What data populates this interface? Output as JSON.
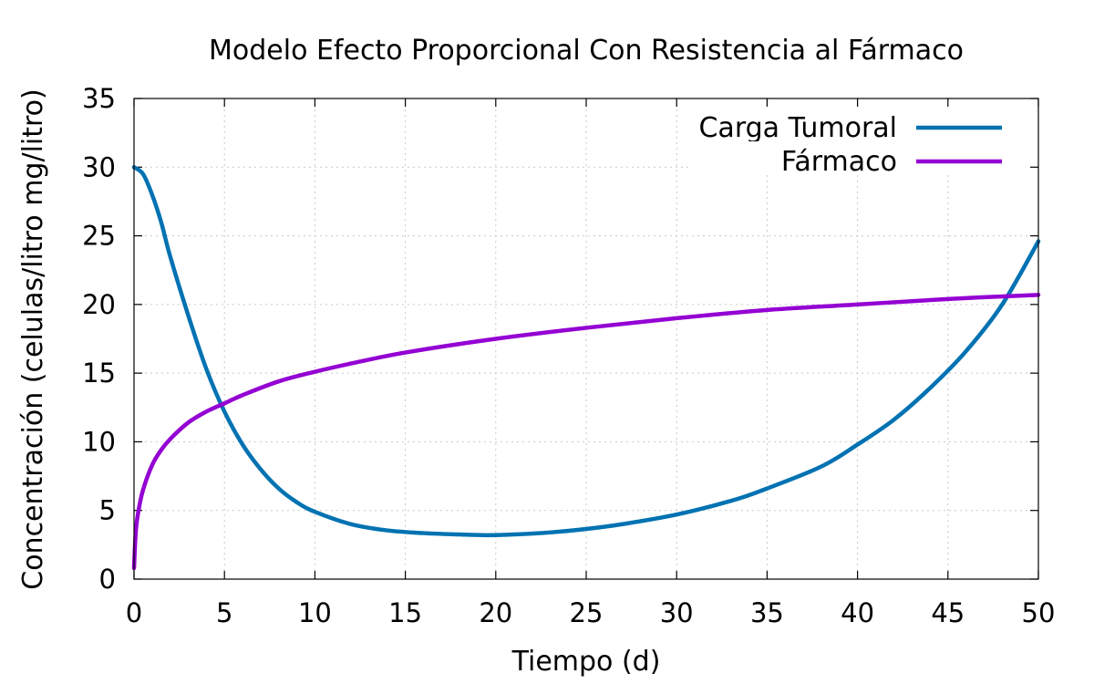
{
  "chart_data": {
    "type": "line",
    "title": "Modelo Efecto Proporcional Con Resistencia al Fármaco",
    "xlabel": "Tiempo (d)",
    "ylabel": "Concentración (celulas/litro  mg/litro)",
    "xlim": [
      0,
      50
    ],
    "ylim": [
      0,
      35
    ],
    "xticks": [
      0,
      5,
      10,
      15,
      20,
      25,
      30,
      35,
      40,
      45,
      50
    ],
    "yticks": [
      0,
      5,
      10,
      15,
      20,
      25,
      30,
      35
    ],
    "grid": true,
    "legend_position": "top-right",
    "series": [
      {
        "name": "Carga Tumoral",
        "color": "#0072b2",
        "x": [
          0,
          0.5,
          1,
          1.5,
          2,
          3,
          4,
          5,
          6,
          7,
          8,
          9,
          10,
          12,
          14,
          16,
          18,
          19.5,
          21,
          23,
          25,
          27,
          30,
          33,
          35,
          38,
          40,
          42,
          44,
          46,
          48,
          50
        ],
        "y": [
          30.0,
          29.5,
          28.0,
          26.0,
          23.5,
          19.2,
          15.3,
          12.2,
          9.8,
          8.0,
          6.6,
          5.6,
          4.9,
          4.0,
          3.55,
          3.35,
          3.25,
          3.2,
          3.25,
          3.4,
          3.65,
          4.0,
          4.7,
          5.7,
          6.6,
          8.2,
          9.8,
          11.6,
          13.9,
          16.6,
          20.0,
          24.6
        ]
      },
      {
        "name": "Fármaco",
        "color": "#9400d3",
        "x": [
          0,
          0.1,
          0.25,
          0.5,
          1,
          1.5,
          2,
          3,
          4,
          5,
          6,
          8,
          10,
          12,
          15,
          20,
          25,
          30,
          35,
          40,
          45,
          50
        ],
        "y": [
          0.8,
          3.5,
          5.0,
          6.5,
          8.3,
          9.4,
          10.2,
          11.4,
          12.2,
          12.8,
          13.4,
          14.4,
          15.1,
          15.7,
          16.5,
          17.5,
          18.3,
          19.0,
          19.6,
          20.0,
          20.4,
          20.7
        ]
      }
    ]
  }
}
